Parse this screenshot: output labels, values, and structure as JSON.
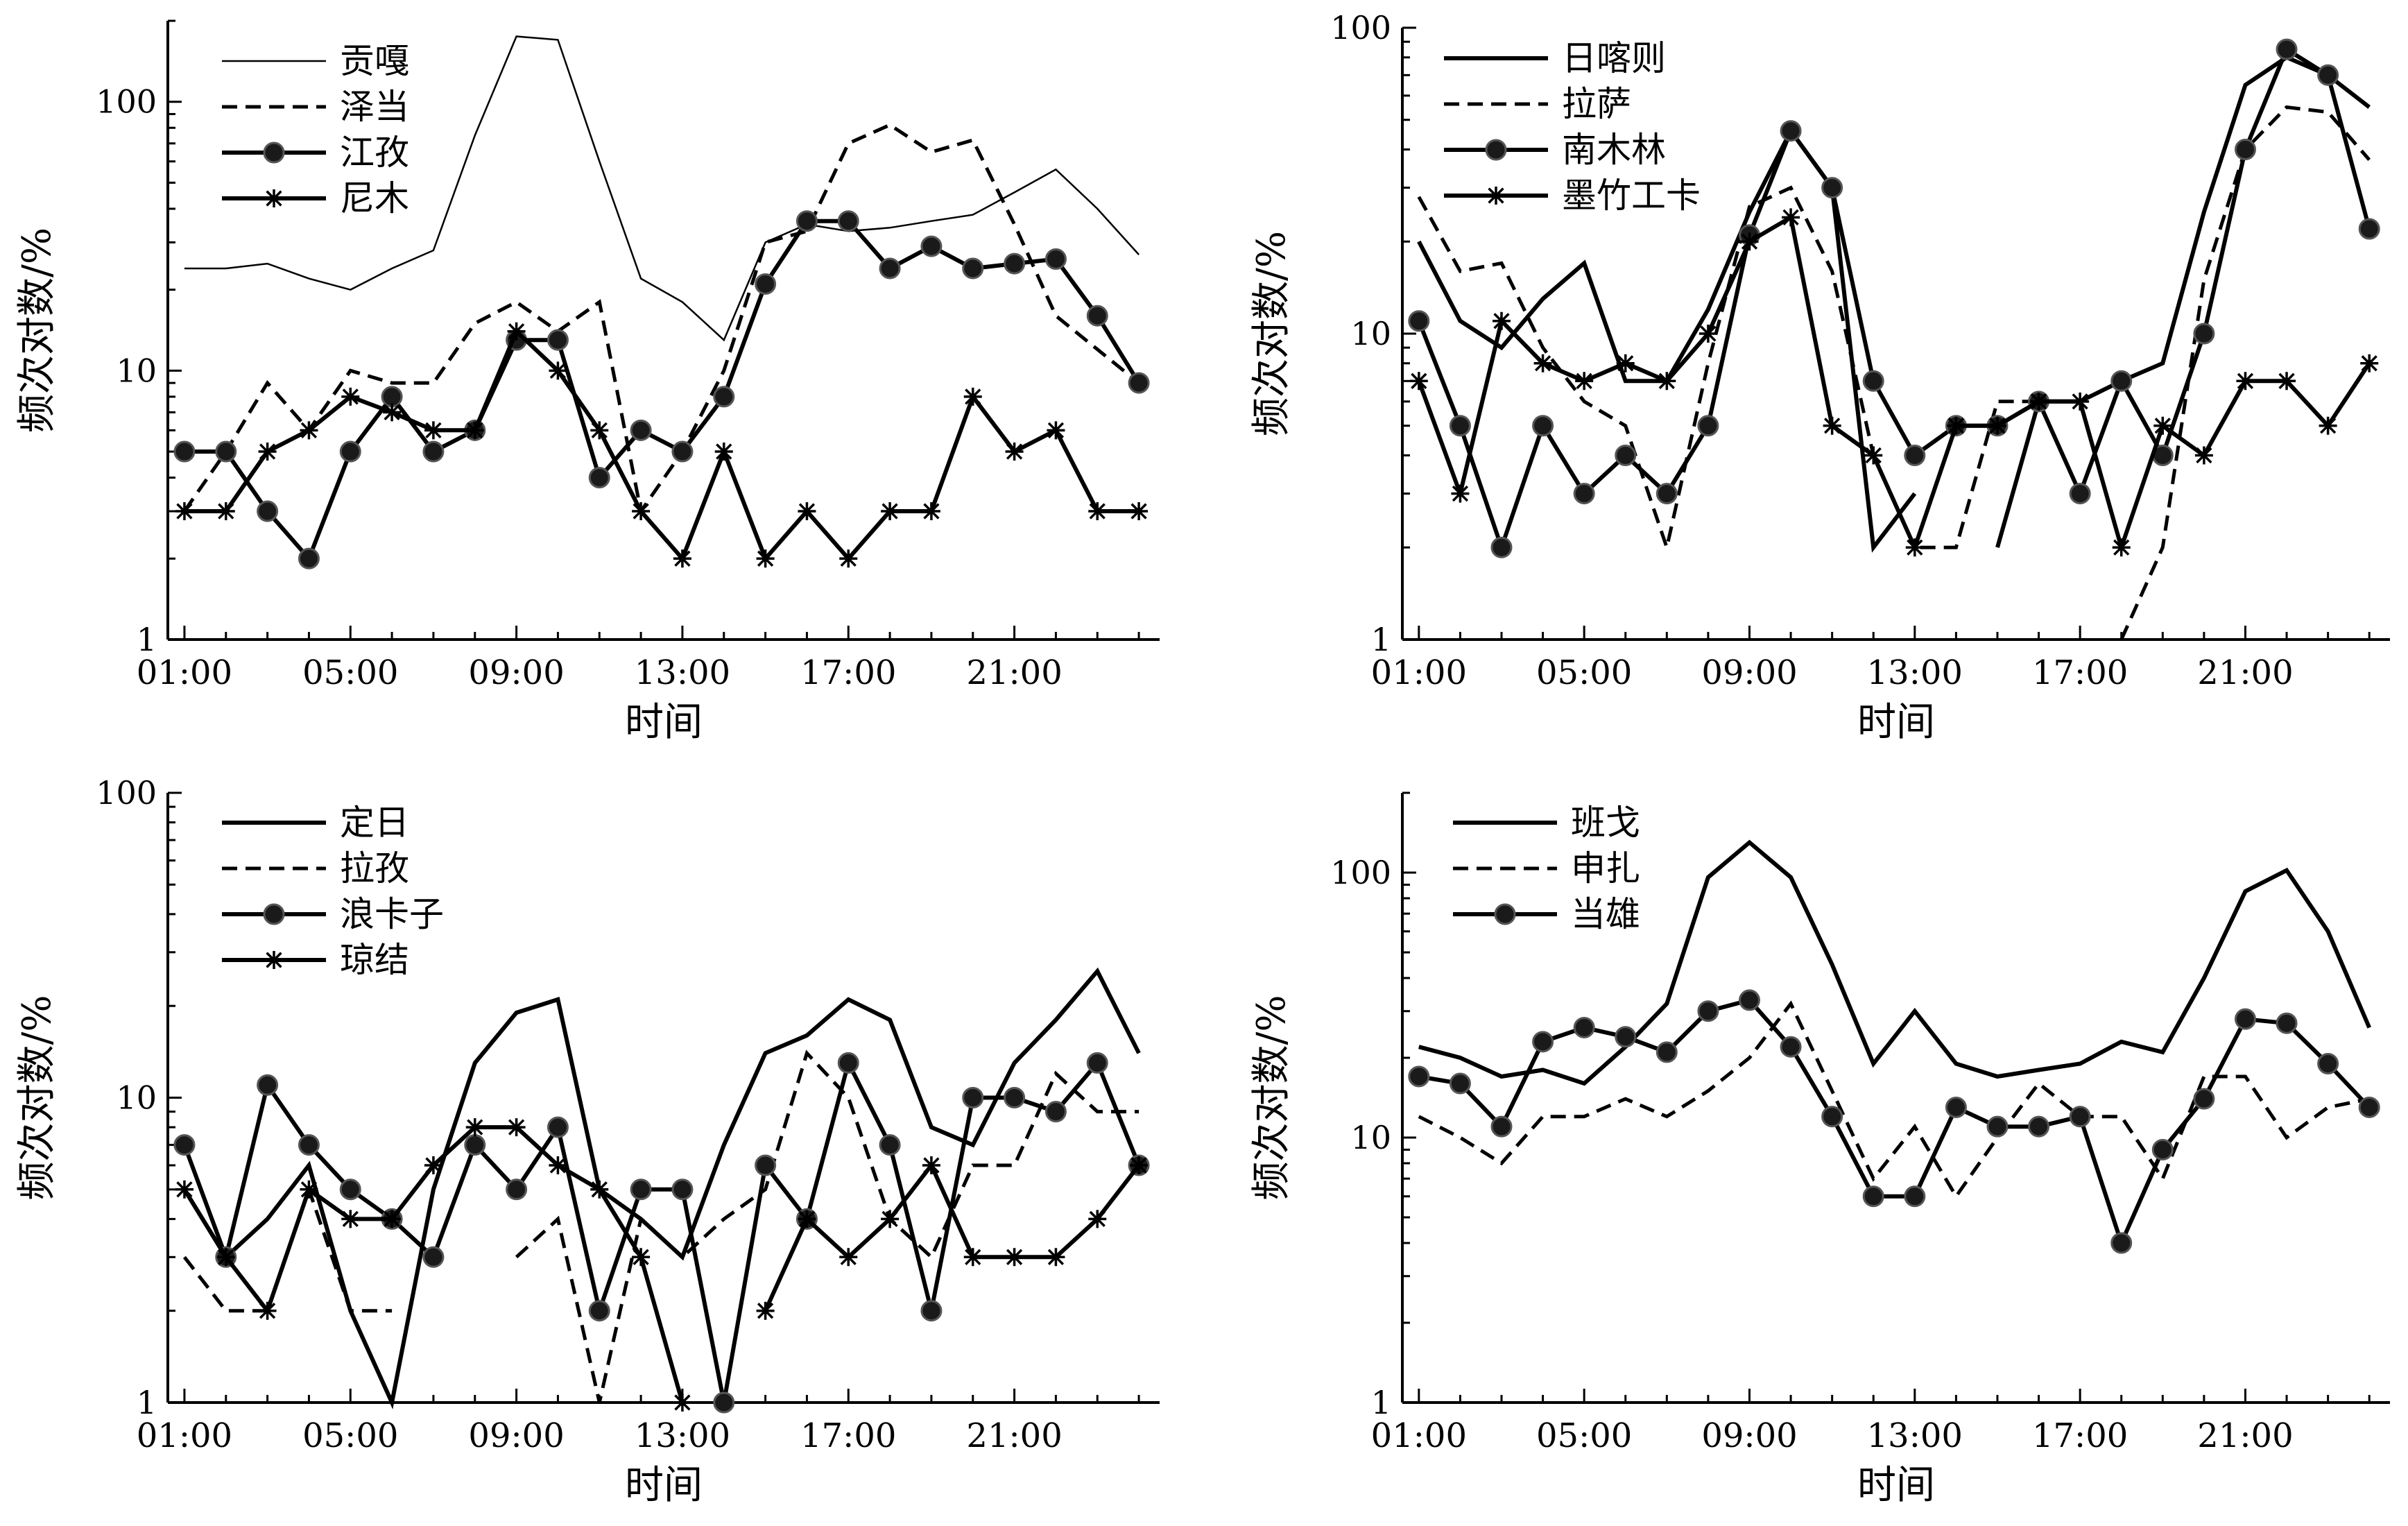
{
  "chart_data": [
    {
      "type": "line",
      "scale": "log",
      "ylim": [
        1,
        200
      ],
      "xlim": [
        0.6,
        24.5
      ],
      "ylabel": "频次对数/%",
      "xlabel": "时间",
      "ytick_labels": [
        {
          "v": 1,
          "t": "1"
        },
        {
          "v": 10,
          "t": "10"
        },
        {
          "v": 100,
          "t": "100"
        }
      ],
      "xtick_labels": [
        {
          "v": 1,
          "t": "01:00"
        },
        {
          "v": 5,
          "t": "05:00"
        },
        {
          "v": 9,
          "t": "09:00"
        },
        {
          "v": 13,
          "t": "13:00"
        },
        {
          "v": 17,
          "t": "17:00"
        },
        {
          "v": 21,
          "t": "21:00"
        }
      ],
      "grid": false,
      "legend": "top-left",
      "series": [
        {
          "name": "贡嘎",
          "style": "thin",
          "x": [
            1,
            2,
            3,
            4,
            5,
            6,
            7,
            8,
            9,
            10,
            11,
            12,
            13,
            14,
            15,
            16,
            17,
            18,
            19,
            20,
            21,
            22,
            23,
            24
          ],
          "values": [
            24,
            24,
            25,
            22,
            20,
            24,
            28,
            75,
            175,
            170,
            60,
            22,
            18,
            13,
            30,
            35,
            33,
            34,
            36,
            38,
            46,
            56,
            40,
            27
          ]
        },
        {
          "name": "泽当",
          "style": "dashed",
          "x": [
            1,
            2,
            3,
            4,
            5,
            6,
            7,
            8,
            9,
            10,
            11,
            12,
            13,
            14,
            15,
            16,
            17,
            18,
            19,
            20,
            21,
            22,
            23,
            24
          ],
          "values": [
            3,
            5,
            9,
            6,
            10,
            9,
            9,
            15,
            18,
            14,
            18,
            3,
            5,
            10,
            30,
            33,
            70,
            82,
            65,
            72,
            35,
            16,
            12,
            9
          ]
        },
        {
          "name": "江孜",
          "style": "circle",
          "x": [
            1,
            2,
            3,
            4,
            5,
            6,
            7,
            8,
            9,
            10,
            11,
            12,
            13,
            14,
            15,
            16,
            17,
            18,
            19,
            20,
            21,
            22,
            23,
            24
          ],
          "values": [
            5,
            5,
            3,
            2,
            5,
            8,
            5,
            6,
            13,
            13,
            4,
            6,
            5,
            8,
            21,
            36,
            36,
            24,
            29,
            24,
            25,
            26,
            16,
            9
          ]
        },
        {
          "name": "尼木",
          "style": "star",
          "x": [
            1,
            2,
            3,
            4,
            5,
            6,
            7,
            8,
            9,
            10,
            11,
            12,
            13,
            14,
            15,
            16,
            17,
            18,
            19,
            20,
            21,
            22,
            23,
            24
          ],
          "values": [
            3,
            3,
            5,
            6,
            8,
            7,
            6,
            6,
            14,
            10,
            6,
            3,
            2,
            5,
            2,
            3,
            2,
            3,
            3,
            8,
            5,
            6,
            3,
            3
          ]
        }
      ]
    },
    {
      "type": "line",
      "scale": "log",
      "ylim": [
        1,
        100
      ],
      "xlim": [
        0.6,
        24.5
      ],
      "ylabel": "频次对数/%",
      "xlabel": "时间",
      "ytick_labels": [
        {
          "v": 1,
          "t": "1"
        },
        {
          "v": 10,
          "t": "10"
        },
        {
          "v": 100,
          "t": "100"
        }
      ],
      "xtick_labels": [
        {
          "v": 1,
          "t": "01:00"
        },
        {
          "v": 5,
          "t": "05:00"
        },
        {
          "v": 9,
          "t": "09:00"
        },
        {
          "v": 13,
          "t": "13:00"
        },
        {
          "v": 17,
          "t": "17:00"
        },
        {
          "v": 21,
          "t": "21:00"
        }
      ],
      "grid": false,
      "legend": "top-left",
      "series": [
        {
          "name": "日喀则",
          "style": "solid",
          "x": [
            1,
            2,
            3,
            4,
            5,
            6,
            7,
            8,
            9,
            10,
            11,
            12,
            13,
            14
          ],
          "values": [
            20,
            11,
            9,
            13,
            17,
            7,
            7,
            12,
            25,
            46,
            30,
            2,
            3,
            null
          ]
        },
        {
          "name": "日喀则",
          "style": "solid",
          "x": [
            15,
            16,
            17,
            18,
            19,
            20,
            21,
            22,
            23,
            24
          ],
          "values": [
            2,
            6,
            6,
            7,
            8,
            25,
            65,
            80,
            70,
            55
          ]
        },
        {
          "name": "拉萨",
          "style": "dashed",
          "x": [
            1,
            2,
            3,
            4,
            5,
            6,
            7,
            8,
            9,
            10,
            11,
            12,
            13,
            14,
            15,
            16,
            17,
            18,
            19,
            20,
            21,
            22,
            23,
            24
          ],
          "values": [
            28,
            16,
            17,
            9,
            6,
            5,
            2,
            8,
            26,
            30,
            16,
            4,
            2,
            2,
            6,
            6,
            null,
            1,
            2,
            15,
            40,
            55,
            53,
            37
          ]
        },
        {
          "name": "南木林",
          "style": "circle",
          "x": [
            1,
            2,
            3,
            4,
            5,
            6,
            7,
            8,
            9,
            10,
            11,
            12,
            13,
            14,
            15,
            16,
            17,
            18,
            19,
            20,
            21,
            22,
            23,
            24
          ],
          "values": [
            11,
            5,
            2,
            5,
            3,
            4,
            3,
            5,
            21,
            46,
            30,
            7,
            4,
            5,
            5,
            6,
            3,
            7,
            4,
            10,
            40,
            85,
            70,
            22
          ]
        },
        {
          "name": "墨竹工卡",
          "style": "star",
          "x": [
            1,
            2,
            3,
            4,
            5,
            6,
            7,
            8,
            9,
            10,
            11,
            12,
            13,
            14,
            15,
            16,
            17,
            18,
            19,
            20,
            21,
            22,
            23,
            24
          ],
          "values": [
            7,
            3,
            11,
            8,
            7,
            8,
            7,
            10,
            20,
            24,
            5,
            4,
            2,
            5,
            5,
            6,
            6,
            2,
            5,
            4,
            7,
            7,
            5,
            8
          ]
        }
      ]
    },
    {
      "type": "line",
      "scale": "log",
      "ylim": [
        1,
        100
      ],
      "xlim": [
        0.6,
        24.5
      ],
      "ylabel": "频次对数/%",
      "xlabel": "时间",
      "ytick_labels": [
        {
          "v": 1,
          "t": "1"
        },
        {
          "v": 10,
          "t": "10"
        },
        {
          "v": 100,
          "t": "100"
        }
      ],
      "xtick_labels": [
        {
          "v": 1,
          "t": "01:00"
        },
        {
          "v": 5,
          "t": "05:00"
        },
        {
          "v": 9,
          "t": "09:00"
        },
        {
          "v": 13,
          "t": "13:00"
        },
        {
          "v": 17,
          "t": "17:00"
        },
        {
          "v": 21,
          "t": "21:00"
        }
      ],
      "grid": false,
      "legend": "top-left",
      "series": [
        {
          "name": "定日",
          "style": "solid",
          "x": [
            1,
            2,
            3,
            4,
            5,
            6,
            7,
            8,
            9,
            10,
            11,
            12,
            13,
            14,
            15,
            16,
            17,
            18,
            19,
            20,
            21,
            22,
            23,
            24
          ],
          "values": [
            5,
            3,
            4,
            6,
            2,
            1,
            5,
            13,
            19,
            21,
            5,
            4,
            3,
            7,
            14,
            16,
            21,
            18,
            8,
            7,
            13,
            18,
            26,
            14
          ]
        },
        {
          "name": "拉孜",
          "style": "dashed",
          "x": [
            1,
            2,
            3,
            4,
            5,
            6
          ],
          "values": [
            3,
            2,
            2,
            5,
            2,
            2
          ]
        },
        {
          "name": "拉孜",
          "style": "dashed",
          "x": [
            9,
            10,
            11,
            12,
            13,
            14,
            15,
            16,
            17,
            18,
            19,
            20,
            21,
            22,
            23,
            24
          ],
          "values": [
            3,
            4,
            1,
            4,
            3,
            4,
            5,
            14,
            10,
            4,
            3,
            6,
            6,
            12,
            9,
            9
          ]
        },
        {
          "name": "浪卡子",
          "style": "circle",
          "x": [
            1,
            2,
            3,
            4,
            5,
            6,
            7,
            8,
            9,
            10,
            11,
            12,
            13,
            14,
            15,
            16,
            17,
            18,
            19,
            20,
            21,
            22,
            23,
            24
          ],
          "values": [
            7,
            3,
            11,
            7,
            5,
            4,
            3,
            7,
            5,
            8,
            2,
            5,
            5,
            1,
            6,
            4,
            13,
            7,
            2,
            10,
            10,
            9,
            13,
            6
          ]
        },
        {
          "name": "琼结",
          "style": "star",
          "x": [
            1,
            2,
            3,
            4,
            5,
            6,
            7,
            8,
            9,
            10,
            11,
            12,
            13,
            14,
            15,
            16,
            17,
            18,
            19,
            20,
            21,
            22,
            23,
            24
          ],
          "values": [
            5,
            3,
            2,
            5,
            4,
            4,
            6,
            8,
            8,
            6,
            5,
            3,
            1,
            null,
            2,
            4,
            3,
            4,
            6,
            3,
            3,
            3,
            4,
            6
          ]
        }
      ]
    },
    {
      "type": "line",
      "scale": "log",
      "ylim": [
        1,
        200
      ],
      "xlim": [
        0.6,
        24.5
      ],
      "ylabel": "频次对数/%",
      "xlabel": "时间",
      "ytick_labels": [
        {
          "v": 1,
          "t": "1"
        },
        {
          "v": 10,
          "t": "10"
        },
        {
          "v": 100,
          "t": "100"
        }
      ],
      "xtick_labels": [
        {
          "v": 1,
          "t": "01:00"
        },
        {
          "v": 5,
          "t": "05:00"
        },
        {
          "v": 9,
          "t": "09:00"
        },
        {
          "v": 13,
          "t": "13:00"
        },
        {
          "v": 17,
          "t": "17:00"
        },
        {
          "v": 21,
          "t": "21:00"
        }
      ],
      "grid": false,
      "legend": "top-left",
      "series": [
        {
          "name": "班戈",
          "style": "solid",
          "x": [
            1,
            2,
            3,
            4,
            5,
            6,
            7,
            8,
            9,
            10,
            11,
            12,
            13,
            14,
            15,
            16,
            17,
            18,
            19,
            20,
            21,
            22,
            23,
            24
          ],
          "values": [
            22,
            20,
            17,
            18,
            16,
            22,
            32,
            96,
            130,
            96,
            45,
            19,
            30,
            19,
            17,
            18,
            19,
            23,
            21,
            40,
            85,
            102,
            60,
            26
          ]
        },
        {
          "name": "申扎",
          "style": "dashed",
          "x": [
            1,
            2,
            3,
            4,
            5,
            6,
            7,
            8,
            9,
            10,
            11,
            12,
            13,
            14,
            15,
            16,
            17,
            18,
            19,
            20,
            21,
            22,
            23,
            24
          ],
          "values": [
            12,
            10,
            8,
            12,
            12,
            14,
            12,
            15,
            20,
            32,
            15,
            7,
            11,
            6,
            10,
            16,
            12,
            12,
            7,
            17,
            17,
            10,
            13,
            14
          ]
        },
        {
          "name": "当雄",
          "style": "circle",
          "x": [
            1,
            2,
            3,
            4,
            5,
            6,
            7,
            8,
            9,
            10,
            11,
            12,
            13,
            14,
            15,
            16,
            17,
            18,
            19,
            20,
            21,
            22,
            23,
            24
          ],
          "values": [
            17,
            16,
            11,
            23,
            26,
            24,
            21,
            30,
            33,
            22,
            12,
            6,
            6,
            13,
            11,
            11,
            12,
            4,
            9,
            14,
            28,
            27,
            19,
            13
          ]
        }
      ]
    }
  ]
}
